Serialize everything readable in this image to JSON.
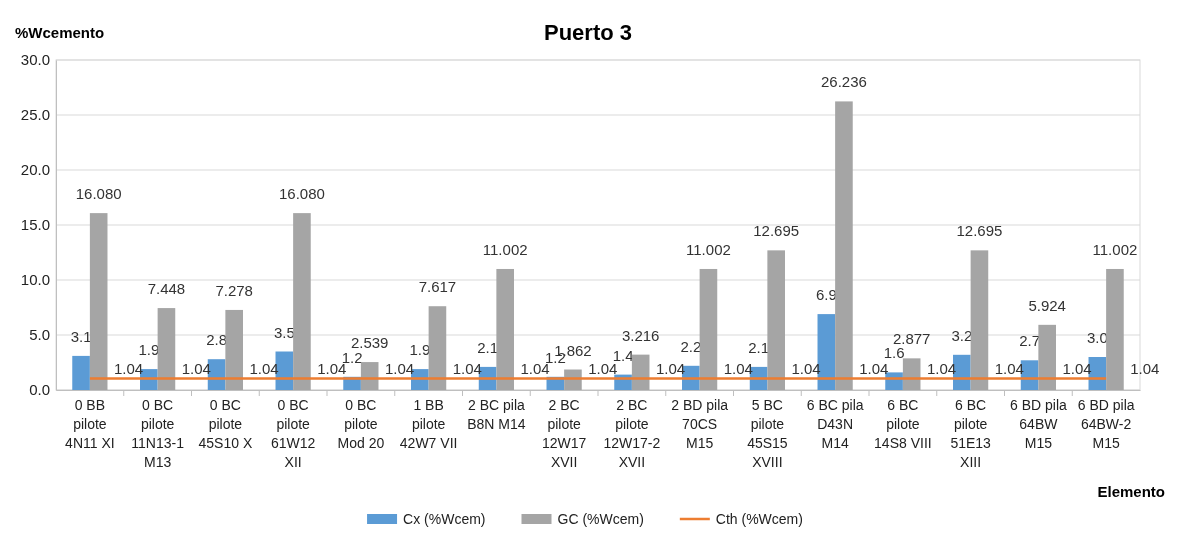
{
  "chart_data": {
    "type": "bar",
    "title": "Puerto 3",
    "ylabel": "%Wcemento",
    "xlabel": "Elemento",
    "categories": [
      "0 BB pilote 4N11 XI",
      "0 BC pilote 11N13-1 M13",
      "0 BC pilote 45S10 X",
      "0 BC pilote 61W12 XII",
      "0 BC pilote Mod 20",
      "1 BB pilote 42W7 VII",
      "2 BC pila B8N M14",
      "2 BC pilote 12W17 XVII",
      "2 BC pilote 12W17-2 XVII",
      "2 BD pila 70CS M15",
      "5 BC pilote 45S15 XVIII",
      "6 BC pila D43N M14",
      "6 BC pilote 14S8 VIII",
      "6 BC pilote 51E13 XIII",
      "6 BD pila 64BW M15",
      "6 BD pila 64BW-2 M15"
    ],
    "series": [
      {
        "name": "Cx (%Wcem)",
        "color": "#5b9bd5",
        "values": [
          3.1,
          1.9,
          2.8,
          3.5,
          1.2,
          1.9,
          2.1,
          1.2,
          1.4,
          2.2,
          2.1,
          6.9,
          1.6,
          3.2,
          2.7,
          3.0
        ],
        "value_labels": [
          "3.1",
          "1.9",
          "2.8",
          "3.5",
          "1.2",
          "1.9",
          "2.1",
          "1.2",
          "1.4",
          "2.2",
          "2.1",
          "6.9",
          "1.6",
          "3.2",
          "2.7",
          "3.0"
        ]
      },
      {
        "name": "GC (%Wcem)",
        "color": "#a5a5a5",
        "values": [
          16.08,
          7.448,
          7.278,
          16.08,
          2.539,
          7.617,
          11.002,
          1.862,
          3.216,
          11.002,
          12.695,
          26.236,
          2.877,
          12.695,
          5.924,
          11.002
        ],
        "value_labels": [
          "16.080",
          "7.448",
          "7.278",
          "16.080",
          "2.539",
          "7.617",
          "11.002",
          "1.862",
          "3.216",
          "11.002",
          "12.695",
          "26.236",
          "2.877",
          "12.695",
          "5.924",
          "11.002"
        ]
      },
      {
        "name": "Cth (%Wcem)",
        "type": "line",
        "color": "#ed7d31",
        "values": [
          1.04,
          1.04,
          1.04,
          1.04,
          1.04,
          1.04,
          1.04,
          1.04,
          1.04,
          1.04,
          1.04,
          1.04,
          1.04,
          1.04,
          1.04,
          1.04
        ],
        "value_labels": [
          "1.04",
          "1.04",
          "1.04",
          "1.04",
          "1.04",
          "1.04",
          "1.04",
          "1.04",
          "1.04",
          "1.04",
          "1.04",
          "1.04",
          "1.04",
          "1.04",
          "1.04",
          "1.04"
        ]
      }
    ],
    "ylim": [
      0,
      30
    ],
    "yticks": [
      {
        "value": 0,
        "label": "0.0"
      },
      {
        "value": 5,
        "label": "5.0"
      },
      {
        "value": 10,
        "label": "10.0"
      },
      {
        "value": 15,
        "label": "15.0"
      },
      {
        "value": 20,
        "label": "20.0"
      },
      {
        "value": 25,
        "label": "25.0"
      },
      {
        "value": 30,
        "label": "30.0"
      }
    ],
    "grid": "y",
    "legend": "bottom",
    "marker": "none",
    "line_style": "solid"
  }
}
